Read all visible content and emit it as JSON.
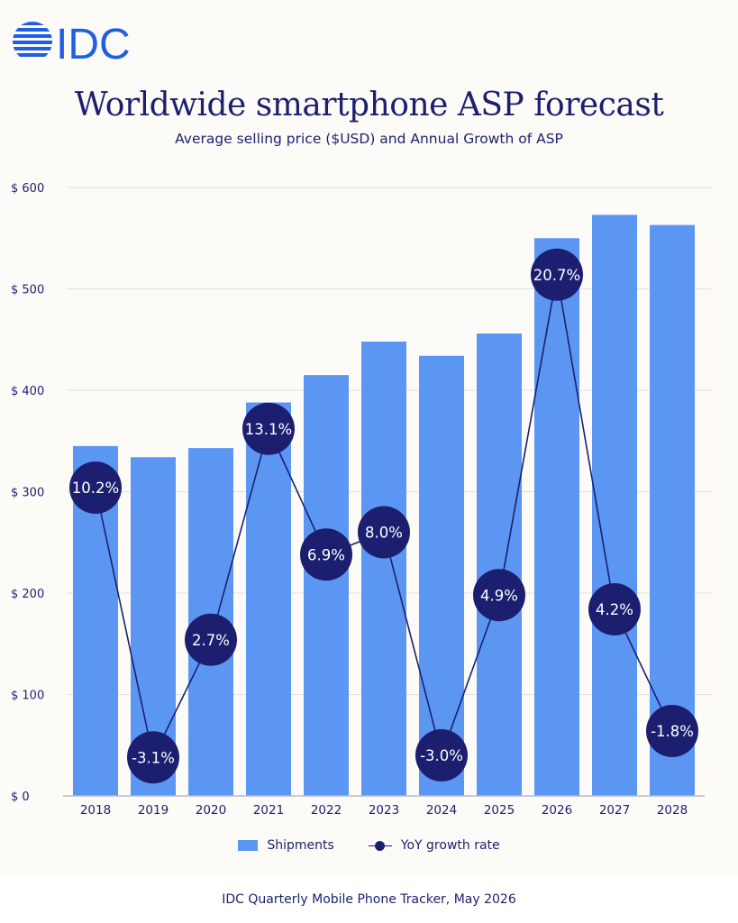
{
  "brand": {
    "logo_text": "IDC",
    "color": "#1f5fe0"
  },
  "colors": {
    "bar": "#5b97f2",
    "line": "#1c1f70",
    "grid": "#e4e2de",
    "text": "#1c1f70"
  },
  "chart_data": {
    "type": "bar",
    "title": "Worldwide smartphone ASP forecast",
    "subtitle": "Average selling price ($USD) and Annual Growth of ASP",
    "categories": [
      "2018",
      "2019",
      "2020",
      "2021",
      "2022",
      "2023",
      "2024",
      "2025",
      "2026",
      "2027",
      "2028"
    ],
    "series": [
      {
        "name": "Shipments",
        "type": "bar",
        "values": [
          345,
          334,
          343,
          388,
          415,
          448,
          434,
          456,
          550,
          573,
          563
        ]
      },
      {
        "name": "YoY growth rate",
        "type": "line",
        "values": [
          10.2,
          -3.1,
          2.7,
          13.1,
          6.9,
          8.0,
          -3.0,
          4.9,
          20.7,
          4.2,
          -1.8
        ],
        "labels": [
          "10.2%",
          "-3.1%",
          "2.7%",
          "13.1%",
          "6.9%",
          "8.0%",
          "-3.0%",
          "4.9%",
          "20.7%",
          "4.2%",
          "-1.8%"
        ]
      }
    ],
    "ylim": [
      0,
      600
    ],
    "yticks": [
      0,
      100,
      200,
      300,
      400,
      500,
      600
    ],
    "ytick_labels": [
      "$ 0",
      "$ 100",
      "$ 200",
      "$ 300",
      "$ 400",
      "$ 500",
      "$ 600"
    ],
    "grid": true,
    "legend": "bottom"
  },
  "source": "IDC Quarterly Mobile Phone Tracker, May 2026"
}
